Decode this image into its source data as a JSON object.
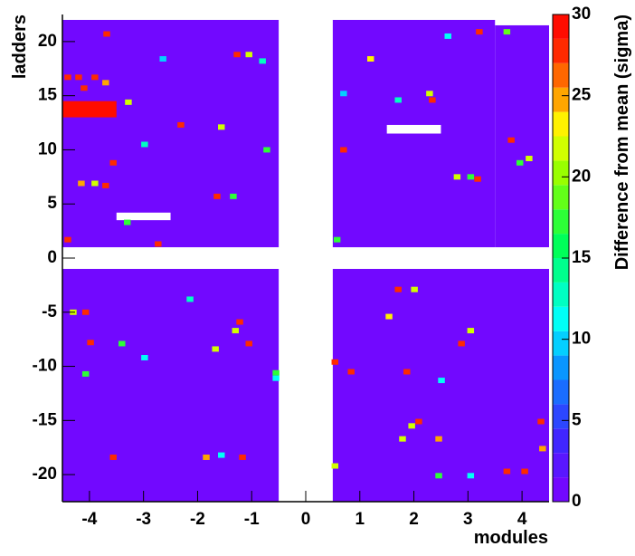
{
  "chart_data": {
    "type": "heatmap",
    "x_label": "modules",
    "y_label": "ladders",
    "z_label": "Difference from mean (sigma)",
    "xlim": [
      -4.5,
      4.5
    ],
    "ylim": [
      -22.5,
      22.5
    ],
    "zlim": [
      0,
      30
    ],
    "xticks": [
      -4,
      -3,
      -2,
      -1,
      0,
      1,
      2,
      3,
      4
    ],
    "yticks": [
      -20,
      -15,
      -10,
      -5,
      0,
      5,
      10,
      15,
      20
    ],
    "zticks": [
      0,
      5,
      10,
      15,
      20,
      25,
      30
    ],
    "cell_size": [
      0.125,
      0.5
    ],
    "colorscale": [
      [
        0,
        "#7f00ff"
      ],
      [
        4,
        "#3c28ff"
      ],
      [
        8,
        "#0a8cff"
      ],
      [
        11,
        "#00ffff"
      ],
      [
        16,
        "#00ff50"
      ],
      [
        20,
        "#90ff00"
      ],
      [
        23,
        "#ffff00"
      ],
      [
        25,
        "#ff9900"
      ],
      [
        28,
        "#ff2000"
      ],
      [
        30,
        "#ff0000"
      ]
    ],
    "color_levels": 20,
    "regions": [
      [
        -4.5,
        -0.5,
        1,
        22,
        1
      ],
      [
        0.5,
        3.5,
        1,
        22,
        1
      ],
      [
        3.5,
        4.5,
        1,
        21.5,
        1
      ],
      [
        -4.5,
        -0.5,
        -22.5,
        -1,
        1
      ],
      [
        0.5,
        4.5,
        -22.5,
        -1,
        1
      ],
      [
        -4.5,
        -3.5,
        13,
        14.5,
        30
      ]
    ],
    "masked": [
      [
        -3.5,
        -2.5,
        3.5,
        4.2
      ],
      [
        1.5,
        2.5,
        11.5,
        12.3
      ]
    ],
    "cells": [
      [
        -3.68,
        20.7,
        28
      ],
      [
        -4.4,
        16.7,
        28
      ],
      [
        -4.2,
        16.7,
        27
      ],
      [
        -3.9,
        16.7,
        28
      ],
      [
        -3.7,
        16.2,
        25
      ],
      [
        -4.1,
        15.7,
        28
      ],
      [
        -3.28,
        14.4,
        22
      ],
      [
        -2.31,
        12.3,
        28
      ],
      [
        -1.56,
        12.1,
        22
      ],
      [
        -1.27,
        18.8,
        28
      ],
      [
        -1.05,
        18.8,
        22
      ],
      [
        -0.8,
        18.2,
        12
      ],
      [
        -2.64,
        18.4,
        10
      ],
      [
        -0.72,
        10,
        17
      ],
      [
        -1.64,
        5.7,
        28
      ],
      [
        -1.34,
        5.7,
        17
      ],
      [
        -2.98,
        10.5,
        12
      ],
      [
        -3.56,
        8.8,
        28
      ],
      [
        -4.15,
        6.9,
        25
      ],
      [
        -3.9,
        6.9,
        22
      ],
      [
        -3.7,
        6.7,
        28
      ],
      [
        -3.3,
        3.3,
        17
      ],
      [
        -2.73,
        1.3,
        28
      ],
      [
        -4.4,
        1.7,
        27
      ],
      [
        2.63,
        20.5,
        11
      ],
      [
        3.21,
        20.9,
        28
      ],
      [
        3.72,
        20.9,
        18
      ],
      [
        1.2,
        18.4,
        23
      ],
      [
        0.7,
        15.2,
        10
      ],
      [
        2.29,
        15.2,
        22
      ],
      [
        2.34,
        14.6,
        28
      ],
      [
        1.71,
        14.6,
        12
      ],
      [
        3.8,
        10.9,
        28
      ],
      [
        4.13,
        9.2,
        22
      ],
      [
        3.96,
        8.8,
        17
      ],
      [
        2.8,
        7.5,
        22
      ],
      [
        3.05,
        7.5,
        17
      ],
      [
        3.18,
        7.3,
        28
      ],
      [
        0.7,
        10,
        28
      ],
      [
        0.58,
        1.7,
        17
      ],
      [
        -4.07,
        -5,
        28
      ],
      [
        -4.3,
        -5,
        22
      ],
      [
        -2.14,
        -3.8,
        12
      ],
      [
        -1.22,
        -5.9,
        28
      ],
      [
        -0.55,
        -10.6,
        17
      ],
      [
        -1.3,
        -6.7,
        22
      ],
      [
        -1.05,
        -7.9,
        28
      ],
      [
        -1.67,
        -8.4,
        22
      ],
      [
        -3.4,
        -7.9,
        17
      ],
      [
        -2.98,
        -9.2,
        11
      ],
      [
        -3.98,
        -7.8,
        28
      ],
      [
        -4.07,
        -10.7,
        17
      ],
      [
        -1.84,
        -18.4,
        24
      ],
      [
        -1.56,
        -18.2,
        11
      ],
      [
        -1.17,
        -18.4,
        28
      ],
      [
        -3.56,
        -18.4,
        28
      ],
      [
        -0.55,
        -11.1,
        11
      ],
      [
        0.84,
        -10.5,
        28
      ],
      [
        1.54,
        -5.4,
        23
      ],
      [
        1.71,
        -2.9,
        28
      ],
      [
        2.01,
        -2.9,
        22
      ],
      [
        2.88,
        -7.9,
        28
      ],
      [
        3.05,
        -6.7,
        22
      ],
      [
        1.87,
        -10.5,
        28
      ],
      [
        2.51,
        -11.3,
        11
      ],
      [
        2.09,
        -15.1,
        28
      ],
      [
        1.96,
        -15.5,
        22
      ],
      [
        1.79,
        -16.7,
        22
      ],
      [
        2.46,
        -16.7,
        24
      ],
      [
        0.54,
        -19.2,
        22
      ],
      [
        2.46,
        -20.1,
        17
      ],
      [
        3.05,
        -20.1,
        11
      ],
      [
        3.72,
        -19.7,
        28
      ],
      [
        4.05,
        -19.7,
        28
      ],
      [
        4.38,
        -17.6,
        24
      ],
      [
        4.35,
        -15.1,
        27
      ],
      [
        0.54,
        -9.6,
        28
      ]
    ]
  }
}
